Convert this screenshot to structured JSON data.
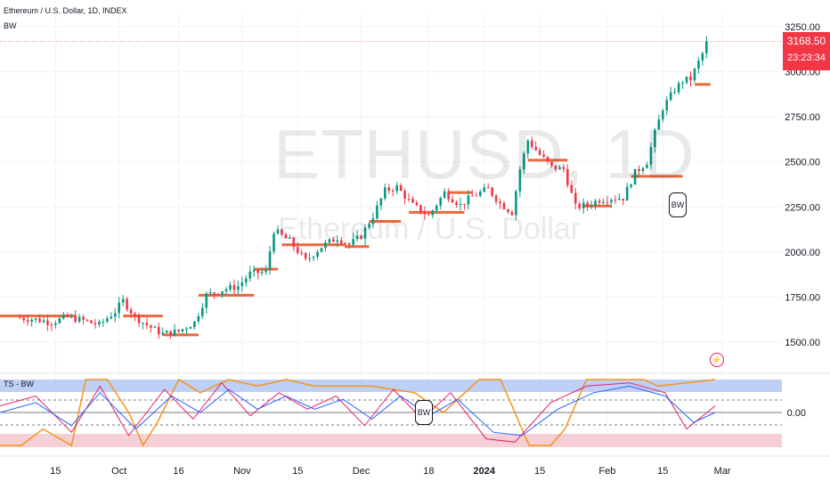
{
  "title": "Ethereum / U.S. Dollar, 1D, INDEX",
  "indicator_label": "BW",
  "sub_indicator_label": "TS - BW",
  "watermark": {
    "symbol": "ETHUSD, 1D",
    "name": "Ethereum / U.S. Dollar"
  },
  "last_price": "3168.50",
  "countdown": "23:23:34",
  "bw_label": "BW",
  "sub_zero_label": "0.00",
  "colors": {
    "up": "#089981",
    "down": "#f23645",
    "orange": "#f7931a",
    "level": "#e9693b",
    "blue_band": "#b3c8f5",
    "red_band": "#f2c7cf"
  },
  "icons": [
    "lightning-alert-icon"
  ],
  "chart_data": [
    {
      "type": "candlestick",
      "title": "Ethereum / U.S. Dollar, 1D, INDEX",
      "y_axis_labels": [
        "3250.00",
        "3000.00",
        "2750.00",
        "2500.00",
        "2250.00",
        "2000.00",
        "1750.00",
        "1500.00"
      ],
      "ylim": [
        1370,
        3330
      ],
      "x_axis_labels": [
        "15",
        "Oct",
        "16",
        "Nov",
        "15",
        "Dec",
        "18",
        "2024",
        "15",
        "Feb",
        "15",
        "Mar"
      ],
      "x_dates": [
        "2023-09-15",
        "2023-10-01",
        "2023-10-16",
        "2023-11-01",
        "2023-11-15",
        "2023-12-01",
        "2023-12-18",
        "2024-01-01",
        "2024-01-15",
        "2024-02-01",
        "2024-02-15",
        "2024-03-01"
      ],
      "close_series": [
        [
          "2023-09-06",
          1635
        ],
        [
          "2023-09-10",
          1625
        ],
        [
          "2023-09-14",
          1610
        ],
        [
          "2023-09-18",
          1640
        ],
        [
          "2023-09-22",
          1620
        ],
        [
          "2023-09-26",
          1595
        ],
        [
          "2023-09-30",
          1670
        ],
        [
          "2023-10-02",
          1730
        ],
        [
          "2023-10-05",
          1640
        ],
        [
          "2023-10-09",
          1580
        ],
        [
          "2023-10-12",
          1545
        ],
        [
          "2023-10-16",
          1560
        ],
        [
          "2023-10-20",
          1610
        ],
        [
          "2023-10-23",
          1760
        ],
        [
          "2023-10-27",
          1790
        ],
        [
          "2023-10-31",
          1810
        ],
        [
          "2023-11-03",
          1880
        ],
        [
          "2023-11-07",
          1890
        ],
        [
          "2023-11-09",
          2120
        ],
        [
          "2023-11-13",
          2060
        ],
        [
          "2023-11-17",
          1950
        ],
        [
          "2023-11-21",
          2030
        ],
        [
          "2023-11-25",
          2080
        ],
        [
          "2023-11-28",
          2040
        ],
        [
          "2023-12-01",
          2090
        ],
        [
          "2023-12-04",
          2200
        ],
        [
          "2023-12-07",
          2340
        ],
        [
          "2023-12-10",
          2360
        ],
        [
          "2023-12-14",
          2260
        ],
        [
          "2023-12-18",
          2200
        ],
        [
          "2023-12-22",
          2330
        ],
        [
          "2023-12-26",
          2260
        ],
        [
          "2023-12-29",
          2310
        ],
        [
          "2024-01-02",
          2350
        ],
        [
          "2024-01-05",
          2270
        ],
        [
          "2024-01-08",
          2220
        ],
        [
          "2024-01-10",
          2460
        ],
        [
          "2024-01-12",
          2620
        ],
        [
          "2024-01-15",
          2540
        ],
        [
          "2024-01-18",
          2470
        ],
        [
          "2024-01-21",
          2460
        ],
        [
          "2024-01-24",
          2250
        ],
        [
          "2024-01-27",
          2260
        ],
        [
          "2024-01-30",
          2290
        ],
        [
          "2024-02-02",
          2300
        ],
        [
          "2024-02-05",
          2300
        ],
        [
          "2024-02-08",
          2440
        ],
        [
          "2024-02-11",
          2500
        ],
        [
          "2024-02-13",
          2660
        ],
        [
          "2024-02-15",
          2800
        ],
        [
          "2024-02-18",
          2900
        ],
        [
          "2024-02-20",
          2950
        ],
        [
          "2024-02-22",
          2960
        ],
        [
          "2024-02-25",
          3100
        ],
        [
          "2024-02-26",
          3168.5
        ]
      ],
      "levels": [
        {
          "from": "2023-09-01",
          "to": "2023-09-20",
          "price": 1645
        },
        {
          "from": "2023-10-02",
          "to": "2023-10-12",
          "price": 1645
        },
        {
          "from": "2023-10-12",
          "to": "2023-10-21",
          "price": 1540
        },
        {
          "from": "2023-10-21",
          "to": "2023-11-04",
          "price": 1760
        },
        {
          "from": "2023-11-04",
          "to": "2023-11-10",
          "price": 1905
        },
        {
          "from": "2023-11-11",
          "to": "2023-11-27",
          "price": 2040
        },
        {
          "from": "2023-11-27",
          "to": "2023-12-03",
          "price": 2030
        },
        {
          "from": "2023-12-03",
          "to": "2023-12-11",
          "price": 2170
        },
        {
          "from": "2023-12-13",
          "to": "2023-12-27",
          "price": 2220
        },
        {
          "from": "2023-12-23",
          "to": "2023-12-29",
          "price": 2330
        },
        {
          "from": "2024-01-12",
          "to": "2024-01-22",
          "price": 2510
        },
        {
          "from": "2024-01-26",
          "to": "2024-02-02",
          "price": 2255
        },
        {
          "from": "2024-02-07",
          "to": "2024-02-20",
          "price": 2420
        },
        {
          "from": "2024-02-23",
          "to": "2024-02-27",
          "price": 2930
        }
      ],
      "last_price": 3168.5
    },
    {
      "type": "line",
      "title": "TS - BW",
      "y_axis_labels": [
        "0.00"
      ],
      "series": [
        {
          "color": "#f7931a",
          "values": [
            [
              0,
              -1
            ],
            [
              0.03,
              -1
            ],
            [
              0.06,
              -0.5
            ],
            [
              0.1,
              -1
            ],
            [
              0.12,
              1
            ],
            [
              0.15,
              1
            ],
            [
              0.18,
              0
            ],
            [
              0.2,
              -1
            ],
            [
              0.22,
              -0.3
            ],
            [
              0.25,
              1
            ],
            [
              0.28,
              0.6
            ],
            [
              0.32,
              1
            ],
            [
              0.36,
              0.8
            ],
            [
              0.4,
              1
            ],
            [
              0.44,
              0.8
            ],
            [
              0.48,
              0.8
            ],
            [
              0.52,
              0.8
            ],
            [
              0.58,
              0.6
            ],
            [
              0.62,
              0
            ],
            [
              0.67,
              1
            ],
            [
              0.7,
              1
            ],
            [
              0.74,
              -1
            ],
            [
              0.77,
              -1
            ],
            [
              0.79,
              -0.5
            ],
            [
              0.82,
              1
            ],
            [
              0.9,
              1
            ],
            [
              0.92,
              0.8
            ],
            [
              1,
              1
            ]
          ]
        },
        {
          "color": "#e91e63",
          "values": [
            [
              0,
              0.2
            ],
            [
              0.05,
              0.5
            ],
            [
              0.1,
              -0.6
            ],
            [
              0.14,
              0.8
            ],
            [
              0.18,
              -0.7
            ],
            [
              0.23,
              0.7
            ],
            [
              0.27,
              -0.2
            ],
            [
              0.31,
              0.9
            ],
            [
              0.35,
              -0.1
            ],
            [
              0.39,
              0.6
            ],
            [
              0.43,
              0.1
            ],
            [
              0.47,
              0.5
            ],
            [
              0.51,
              -0.4
            ],
            [
              0.55,
              0.7
            ],
            [
              0.59,
              -0.2
            ],
            [
              0.63,
              0.6
            ],
            [
              0.68,
              -0.8
            ],
            [
              0.72,
              -0.9
            ],
            [
              0.77,
              0.3
            ],
            [
              0.82,
              0.8
            ],
            [
              0.88,
              0.9
            ],
            [
              0.93,
              0.6
            ],
            [
              0.96,
              -0.5
            ],
            [
              1,
              0.2
            ]
          ]
        },
        {
          "color": "#2962ff",
          "values": [
            [
              0,
              0
            ],
            [
              0.05,
              0.3
            ],
            [
              0.1,
              -0.4
            ],
            [
              0.14,
              0.6
            ],
            [
              0.19,
              -0.5
            ],
            [
              0.24,
              0.5
            ],
            [
              0.28,
              0
            ],
            [
              0.32,
              0.7
            ],
            [
              0.36,
              0.1
            ],
            [
              0.4,
              0.5
            ],
            [
              0.44,
              0.1
            ],
            [
              0.48,
              0.4
            ],
            [
              0.52,
              -0.2
            ],
            [
              0.56,
              0.5
            ],
            [
              0.6,
              -0.1
            ],
            [
              0.64,
              0.4
            ],
            [
              0.69,
              -0.6
            ],
            [
              0.73,
              -0.7
            ],
            [
              0.78,
              0.1
            ],
            [
              0.83,
              0.6
            ],
            [
              0.88,
              0.8
            ],
            [
              0.93,
              0.5
            ],
            [
              0.97,
              -0.3
            ],
            [
              1,
              0
            ]
          ]
        }
      ]
    }
  ]
}
